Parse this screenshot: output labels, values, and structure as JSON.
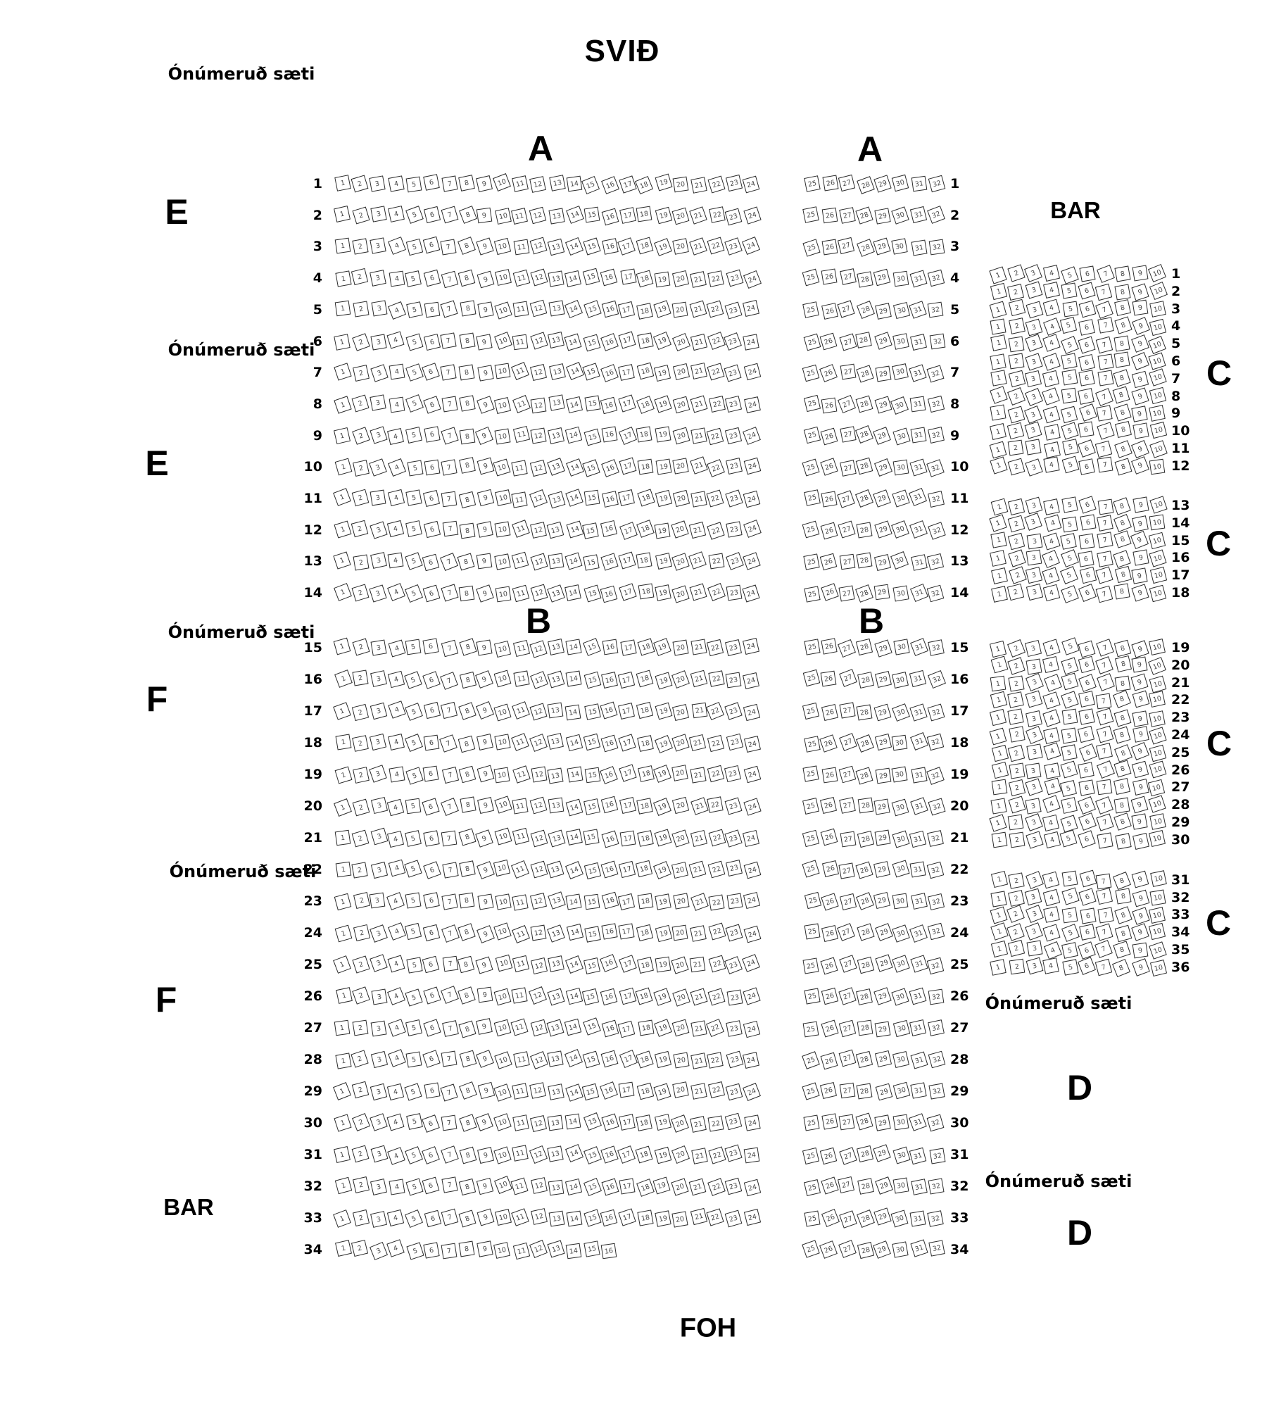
{
  "title": "SVIÐ",
  "foh": "FOH",
  "labels": {
    "unnumbered": "Ónúmeruð sæti",
    "bar": "BAR"
  },
  "sections": {
    "a": "A",
    "b": "B",
    "c": "C",
    "d": "D",
    "e": "E",
    "f": "F"
  },
  "seat_map": {
    "main_left_block": {
      "sections": [
        "A",
        "B"
      ],
      "row_from": 1,
      "row_to": 34,
      "seat_from": 1,
      "seat_to": 24,
      "section_break_after_row": 14,
      "exceptions": [
        {
          "row": 34,
          "seat_to": 16
        }
      ]
    },
    "main_right_block": {
      "sections": [
        "A",
        "B"
      ],
      "row_from": 1,
      "row_to": 34,
      "seat_from": 25,
      "seat_to": 32
    },
    "side_right_block": {
      "section": "C",
      "seat_from": 1,
      "seat_to": 10,
      "row_groups": [
        {
          "row_from": 1,
          "row_to": 12
        },
        {
          "row_from": 13,
          "row_to": 18
        },
        {
          "row_from": 19,
          "row_to": 30
        },
        {
          "row_from": 31,
          "row_to": 36
        }
      ]
    }
  }
}
